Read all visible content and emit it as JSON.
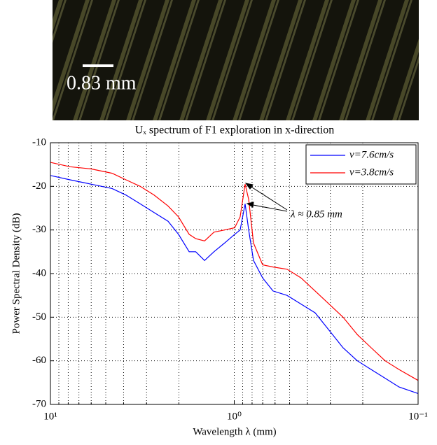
{
  "image": {
    "scale_label": "0.83 mm"
  },
  "chart_data": {
    "type": "line",
    "title": "Uₓ spectrum of F1 exploration in x-direction",
    "x_label": "Wavelength λ (mm)",
    "y_label": "Power Spectral Density (dB)",
    "annotation": "λ ≈ 0.85 mm",
    "xscale": "log",
    "grid": true,
    "legend": "upper right",
    "xlim": [
      10,
      0.1
    ],
    "ylim": [
      -70,
      -10
    ],
    "xticks": [
      {
        "value": 10,
        "label": "10¹"
      },
      {
        "value": 1,
        "label": "10⁰"
      },
      {
        "value": 0.1,
        "label": "10⁻¹"
      }
    ],
    "yticks": [
      -70,
      -60,
      -50,
      -40,
      -30,
      -20,
      -10
    ],
    "x": [
      10,
      7.82,
      6.01,
      4.62,
      3.88,
      3.25,
      2.73,
      2.29,
      2.01,
      1.76,
      1.62,
      1.45,
      1.29,
      1.13,
      0.995,
      0.929,
      0.873,
      0.835,
      0.786,
      0.701,
      0.615,
      0.516,
      0.433,
      0.363,
      0.305,
      0.256,
      0.214,
      0.18,
      0.151,
      0.127,
      0.1
    ],
    "series": [
      {
        "name": "v=7.6cm/s",
        "color": "#0000ff",
        "values": [
          -17.5,
          -18.5,
          -19.5,
          -20.5,
          -22,
          -24,
          -26,
          -28,
          -31,
          -35,
          -35,
          -37,
          -35,
          -33,
          -31,
          -30,
          -24,
          -30,
          -37,
          -41,
          -44,
          -45,
          -47,
          -49,
          -53,
          -57,
          -60,
          -62,
          -64,
          -66,
          -67.5
        ]
      },
      {
        "name": "v=3.8cm/s",
        "color": "#ff0000",
        "values": [
          -14.5,
          -15.5,
          -16,
          -17,
          -18.5,
          -20,
          -22,
          -24.5,
          -27,
          -31,
          -32,
          -32.5,
          -30.5,
          -30,
          -29.5,
          -27,
          -19.5,
          -23,
          -33,
          -38,
          -38.5,
          -39,
          -41,
          -44,
          -47,
          -50,
          -54,
          -57,
          -60,
          -62,
          -64.5
        ]
      }
    ]
  }
}
